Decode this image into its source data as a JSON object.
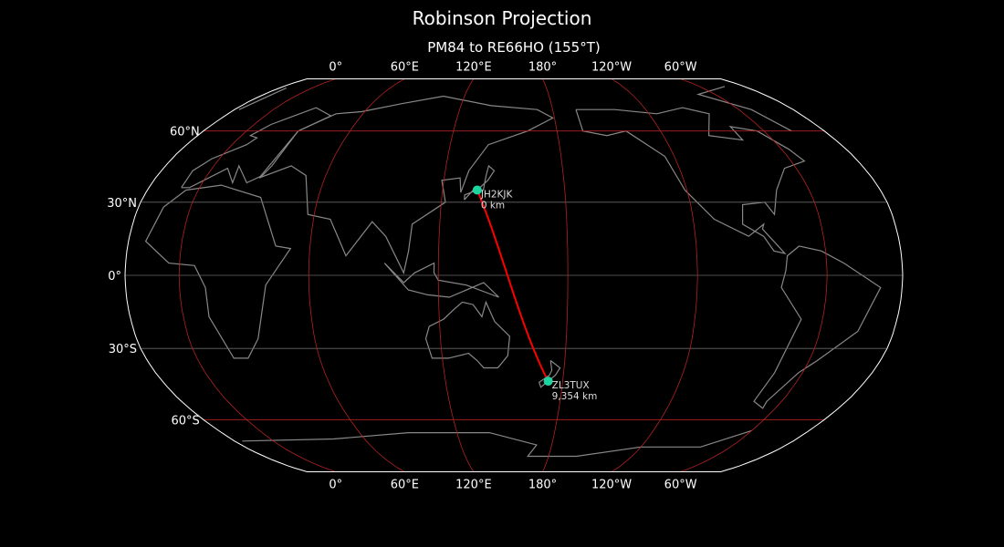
{
  "title": "Robinson Projection",
  "subtitle": "PM84 to RE66HO (155°T)",
  "map": {
    "projection": "Robinson",
    "central_longitude": 155,
    "colors": {
      "background": "#000000",
      "coastline": "#888888",
      "graticule_major": "#b22222",
      "graticule_minor": "#666666",
      "path": "#ff0000",
      "marker": "#1dd3a0",
      "outline": "#ffffff"
    },
    "longitude_labels": [
      {
        "lon": 0,
        "text": "0°"
      },
      {
        "lon": 60,
        "text": "60°E"
      },
      {
        "lon": 120,
        "text": "120°E"
      },
      {
        "lon": 180,
        "text": "180°"
      },
      {
        "lon": -120,
        "text": "120°W"
      },
      {
        "lon": -60,
        "text": "60°W"
      }
    ],
    "latitude_labels": [
      {
        "lat": 60,
        "text": "60°N"
      },
      {
        "lat": 30,
        "text": "30°N"
      },
      {
        "lat": 0,
        "text": "0°"
      },
      {
        "lat": -30,
        "text": "30°S"
      },
      {
        "lat": -60,
        "text": "60°S"
      }
    ],
    "stations": [
      {
        "call": "JH2KJK",
        "distance": "0 km",
        "lat": 35.0,
        "lon": 137.0
      },
      {
        "call": "ZL3TUX",
        "distance": "9,354 km",
        "lat": -43.5,
        "lon": 172.6
      }
    ]
  }
}
